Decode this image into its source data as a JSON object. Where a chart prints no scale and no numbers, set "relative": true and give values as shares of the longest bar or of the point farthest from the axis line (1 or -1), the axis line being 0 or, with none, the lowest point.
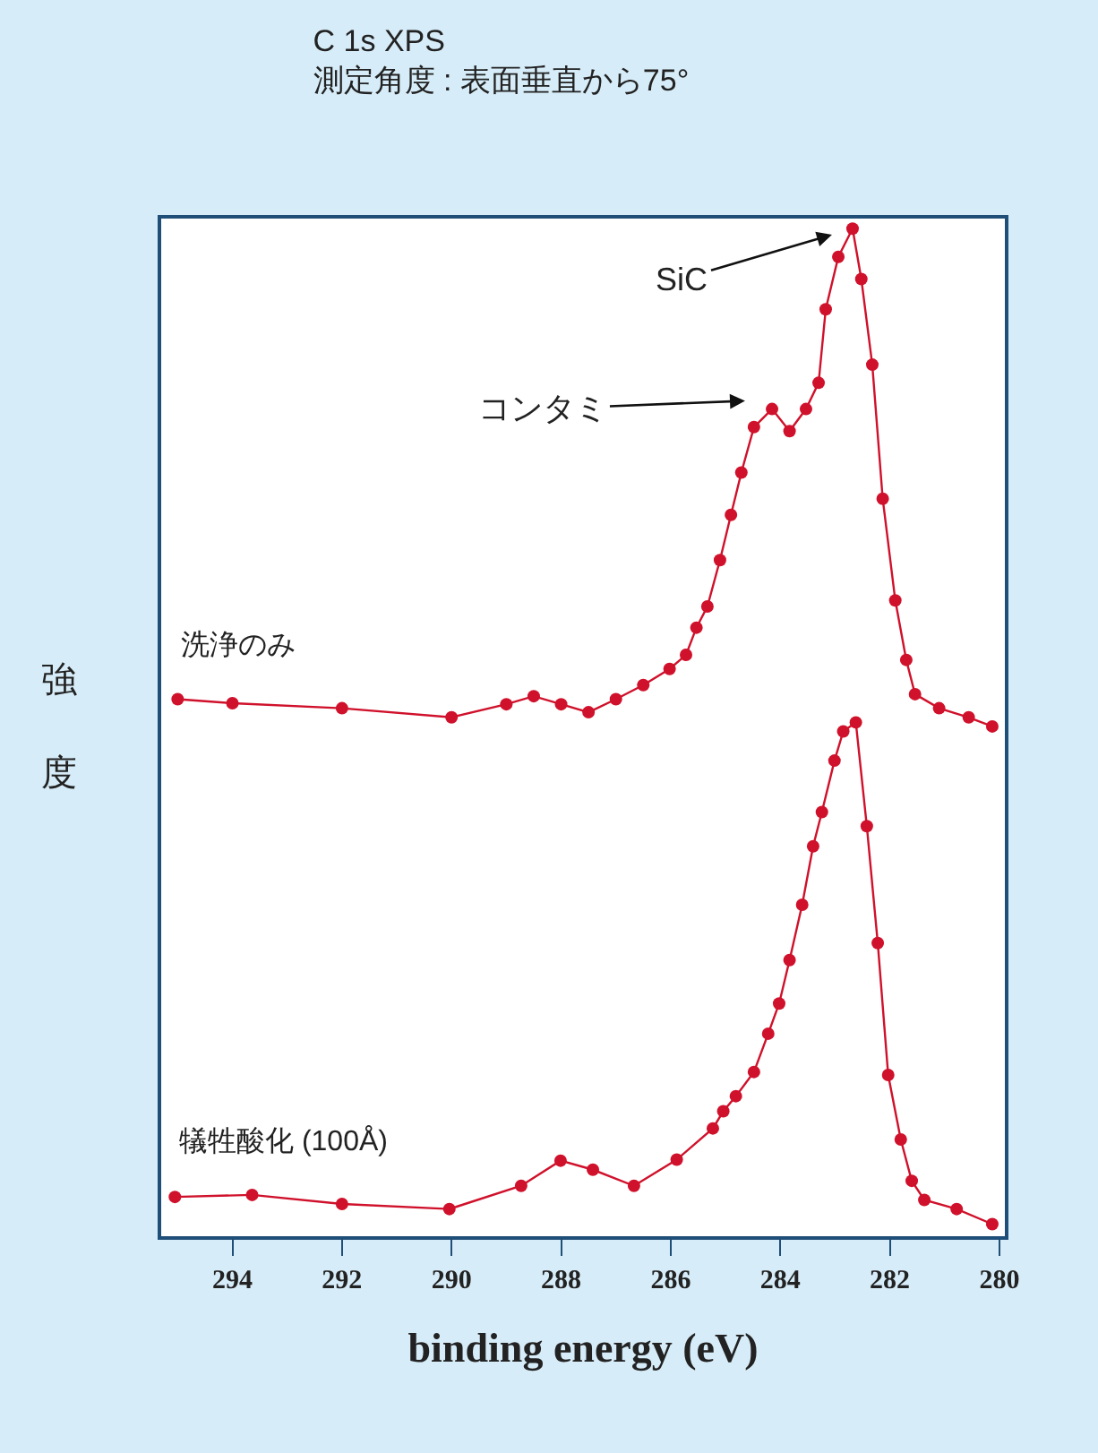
{
  "chart_data": {
    "type": "line",
    "title": "C 1s XPS\n測定角度 : 表面垂直から75°",
    "xlabel": "binding energy (eV)",
    "ylabel": "強度",
    "relative": true,
    "xlim": [
      295.3,
      279.9
    ],
    "xticks": [
      294,
      292,
      290,
      288,
      286,
      284,
      282,
      280
    ],
    "marker": "circle",
    "line_style": "solid",
    "grid": false,
    "legend": false,
    "series": [
      {
        "name": "洗浄のみ",
        "color": "#d0112b",
        "x": [
          295.0,
          294,
          292,
          290,
          289,
          288.5,
          288,
          287.5,
          287,
          286.5,
          286.02,
          285.72,
          285.53,
          285.33,
          285.1,
          284.9,
          284.71,
          284.48,
          284.15,
          283.83,
          283.53,
          283.3,
          283.17,
          282.94,
          282.68,
          282.52,
          282.32,
          282.13,
          281.9,
          281.7,
          281.54,
          281.1,
          280.56,
          280.13
        ],
        "values": [
          0.533,
          0.529,
          0.524,
          0.515,
          0.528,
          0.536,
          0.528,
          0.52,
          0.533,
          0.547,
          0.563,
          0.577,
          0.604,
          0.625,
          0.671,
          0.716,
          0.758,
          0.803,
          0.821,
          0.799,
          0.821,
          0.847,
          0.92,
          0.972,
          1,
          0.95,
          0.865,
          0.732,
          0.631,
          0.572,
          0.538,
          0.524,
          0.515,
          0.506
        ]
      },
      {
        "name": "犠牲酸化 (100Å)",
        "color": "#d0112b",
        "x": [
          295.05,
          293.64,
          292,
          290.04,
          288.73,
          288.01,
          287.42,
          286.67,
          285.89,
          285.23,
          285.04,
          284.81,
          284.48,
          284.22,
          284.02,
          283.83,
          283.6,
          283.4,
          283.24,
          283.01,
          282.85,
          282.62,
          282.42,
          282.22,
          282.03,
          281.8,
          281.6,
          281.37,
          280.78,
          280.13
        ],
        "values": [
          0.039,
          0.041,
          0.032,
          0.027,
          0.05,
          0.075,
          0.066,
          0.05,
          0.076,
          0.107,
          0.124,
          0.139,
          0.163,
          0.201,
          0.231,
          0.274,
          0.329,
          0.387,
          0.421,
          0.472,
          0.501,
          0.51,
          0.407,
          0.291,
          0.16,
          0.096,
          0.055,
          0.036,
          0.027,
          0.012
        ]
      }
    ],
    "annotations": [
      {
        "text": "SiC",
        "x": 282.68,
        "y": 1
      },
      {
        "text": "コンタミ",
        "x": 284.25,
        "y": 0.83
      }
    ]
  }
}
